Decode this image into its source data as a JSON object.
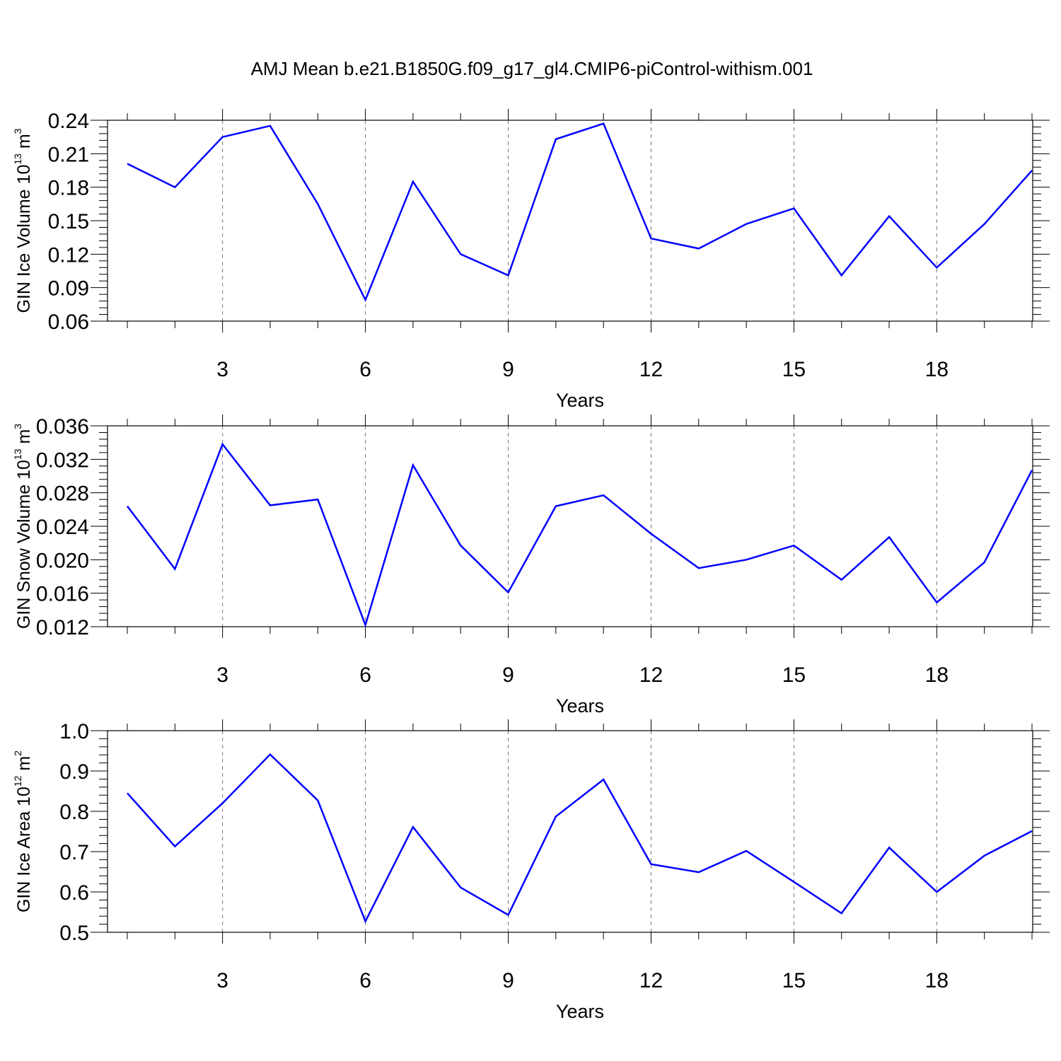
{
  "title": "AMJ Mean b.e21.B1850G.f09_g17_gl4.CMIP6-piControl-withism.001",
  "colors": {
    "series": "#0000ff",
    "axis": "#000000",
    "grid": "#777777"
  },
  "chart_data": [
    {
      "type": "line",
      "ylabel": "GIN Ice Volume 10",
      "ylabel_exp": "13",
      "ylabel_unit": " m",
      "ylabel_unit_exp": "3",
      "xlabel": "Years",
      "xlim": [
        1,
        20
      ],
      "ylim": [
        0.06,
        0.24
      ],
      "yticks": [
        "0.06",
        "0.09",
        "0.12",
        "0.15",
        "0.18",
        "0.21",
        "0.24"
      ],
      "xticks": [
        "3",
        "6",
        "9",
        "12",
        "15",
        "18"
      ],
      "x": [
        1,
        2,
        3,
        4,
        5,
        6,
        7,
        8,
        9,
        10,
        11,
        12,
        13,
        14,
        15,
        16,
        17,
        18,
        19,
        20
      ],
      "series": [
        {
          "values": [
            0.201,
            0.18,
            0.225,
            0.235,
            0.165,
            0.079,
            0.185,
            0.12,
            0.101,
            0.223,
            0.237,
            0.134,
            0.125,
            0.147,
            0.161,
            0.101,
            0.154,
            0.108,
            0.147,
            0.195
          ]
        }
      ],
      "grid": "vertical dashed at major x ticks"
    },
    {
      "type": "line",
      "ylabel": "GIN Snow Volume 10",
      "ylabel_exp": "13",
      "ylabel_unit": " m",
      "ylabel_unit_exp": "3",
      "xlabel": "Years",
      "xlim": [
        1,
        20
      ],
      "ylim": [
        0.012,
        0.036
      ],
      "yticks": [
        "0.012",
        "0.016",
        "0.020",
        "0.024",
        "0.028",
        "0.032",
        "0.036"
      ],
      "xticks": [
        "3",
        "6",
        "9",
        "12",
        "15",
        "18"
      ],
      "x": [
        1,
        2,
        3,
        4,
        5,
        6,
        7,
        8,
        9,
        10,
        11,
        12,
        13,
        14,
        15,
        16,
        17,
        18,
        19,
        20
      ],
      "series": [
        {
          "values": [
            0.0264,
            0.0189,
            0.0338,
            0.0265,
            0.0272,
            0.0122,
            0.0313,
            0.0217,
            0.0161,
            0.0264,
            0.0277,
            0.0231,
            0.019,
            0.02,
            0.0217,
            0.0176,
            0.0227,
            0.0149,
            0.0197,
            0.0307
          ]
        }
      ],
      "grid": "vertical dashed at major x ticks"
    },
    {
      "type": "line",
      "ylabel": "GIN Ice Area 10",
      "ylabel_exp": "12",
      "ylabel_unit": " m",
      "ylabel_unit_exp": "2",
      "xlabel": "Years",
      "xlim": [
        1,
        20
      ],
      "ylim": [
        0.5,
        1.0
      ],
      "yticks": [
        "0.5",
        "0.6",
        "0.7",
        "0.8",
        "0.9",
        "1.0"
      ],
      "xticks": [
        "3",
        "6",
        "9",
        "12",
        "15",
        "18"
      ],
      "x": [
        1,
        2,
        3,
        4,
        5,
        6,
        7,
        8,
        9,
        10,
        11,
        12,
        13,
        14,
        15,
        16,
        17,
        18,
        19,
        20
      ],
      "series": [
        {
          "values": [
            0.845,
            0.713,
            0.82,
            0.941,
            0.827,
            0.527,
            0.761,
            0.611,
            0.543,
            0.787,
            0.879,
            0.669,
            0.649,
            0.702,
            0.625,
            0.547,
            0.71,
            0.6,
            0.69,
            0.751
          ]
        }
      ],
      "grid": "vertical dashed at major x ticks"
    }
  ]
}
